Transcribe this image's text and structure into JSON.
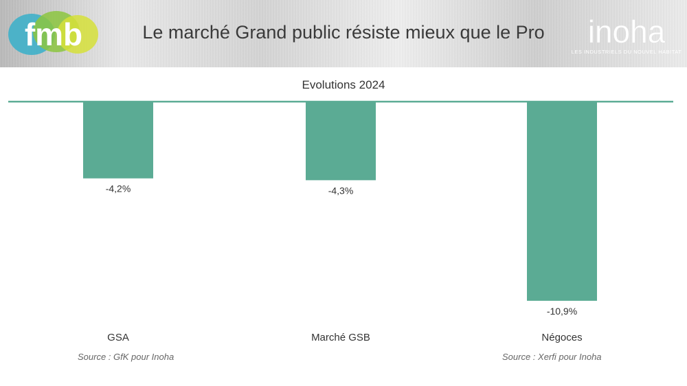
{
  "header": {
    "title": "Le marché Grand public résiste mieux que le Pro",
    "left_logo": "fmb",
    "right_logo": "inoha",
    "right_logo_tagline": "LES INDUSTRIELS DU NOUVEL HABITAT"
  },
  "sources": {
    "left": "Source : GfK pour Inoha",
    "right": "Source : Xerfi pour Inoha"
  },
  "colors": {
    "bar": "#5bab94",
    "axis": "#5bab94"
  },
  "chart_data": {
    "type": "bar",
    "title": "Evolutions 2024",
    "categories": [
      "GSA",
      "Marché GSB",
      "Négoces"
    ],
    "values": [
      -4.2,
      -4.3,
      -10.9
    ],
    "data_labels": [
      "-4,2%",
      "-4,3%",
      "-10,9%"
    ],
    "xlabel": "",
    "ylabel": "",
    "ylim": [
      -11,
      0
    ],
    "grid": false,
    "legend": "none"
  }
}
